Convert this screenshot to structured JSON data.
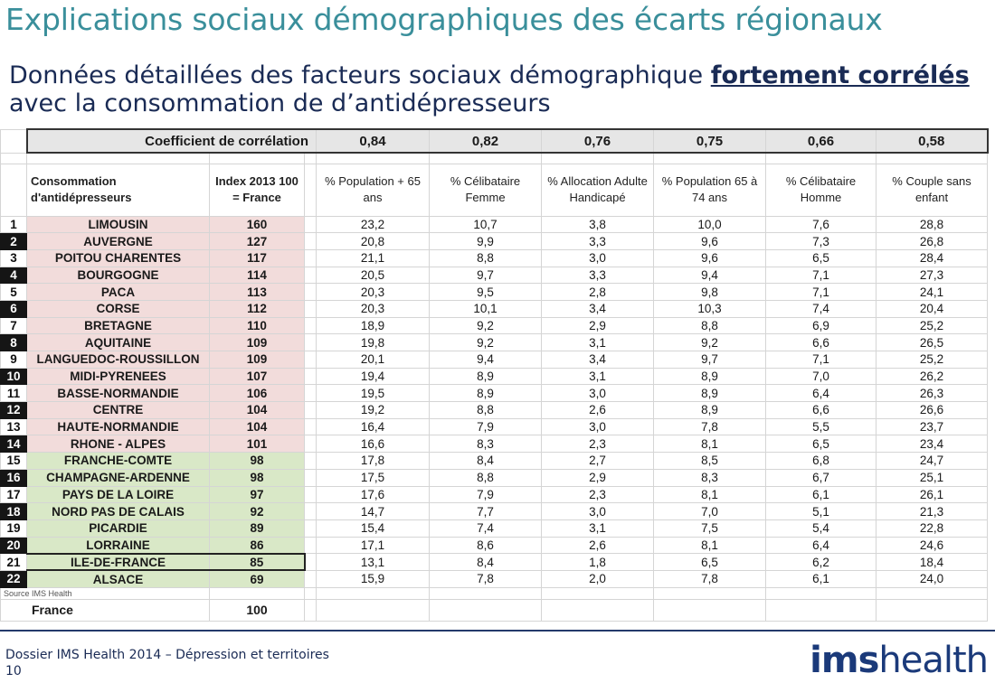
{
  "title": "Explications sociaux démographiques des écarts régionaux",
  "subtitle": {
    "line1_pre": "Données détaillées des facteurs sociaux démographique ",
    "line1_emph": "fortement corrélés",
    "line2": "avec la consommation de d’antidépresseurs"
  },
  "table": {
    "coef_label": "Coefficient de corrélation",
    "coefs": [
      "0,84",
      "0,82",
      "0,76",
      "0,75",
      "0,66",
      "0,58"
    ],
    "headers": {
      "consumption": "Consommation d'antidépresseurs",
      "index": "Index 2013 100 = France",
      "cols": [
        "% Population + 65 ans",
        "% Célibataire Femme",
        "% Allocation Adulte Handicapé",
        "% Population 65 à 74 ans",
        "% Célibataire Homme",
        "% Couple sans enfant"
      ]
    },
    "rows": [
      {
        "rank": "1",
        "region": "LIMOUSIN",
        "index": "160",
        "vals": [
          "23,2",
          "10,7",
          "3,8",
          "10,0",
          "7,6",
          "28,8"
        ]
      },
      {
        "rank": "2",
        "region": "AUVERGNE",
        "index": "127",
        "vals": [
          "20,8",
          "9,9",
          "3,3",
          "9,6",
          "7,3",
          "26,8"
        ]
      },
      {
        "rank": "3",
        "region": "POITOU CHARENTES",
        "index": "117",
        "vals": [
          "21,1",
          "8,8",
          "3,0",
          "9,6",
          "6,5",
          "28,4"
        ]
      },
      {
        "rank": "4",
        "region": "BOURGOGNE",
        "index": "114",
        "vals": [
          "20,5",
          "9,7",
          "3,3",
          "9,4",
          "7,1",
          "27,3"
        ]
      },
      {
        "rank": "5",
        "region": "PACA",
        "index": "113",
        "vals": [
          "20,3",
          "9,5",
          "2,8",
          "9,8",
          "7,1",
          "24,1"
        ]
      },
      {
        "rank": "6",
        "region": "CORSE",
        "index": "112",
        "vals": [
          "20,3",
          "10,1",
          "3,4",
          "10,3",
          "7,4",
          "20,4"
        ]
      },
      {
        "rank": "7",
        "region": "BRETAGNE",
        "index": "110",
        "vals": [
          "18,9",
          "9,2",
          "2,9",
          "8,8",
          "6,9",
          "25,2"
        ]
      },
      {
        "rank": "8",
        "region": "AQUITAINE",
        "index": "109",
        "vals": [
          "19,8",
          "9,2",
          "3,1",
          "9,2",
          "6,6",
          "26,5"
        ]
      },
      {
        "rank": "9",
        "region": "LANGUEDOC-ROUSSILLON",
        "index": "109",
        "vals": [
          "20,1",
          "9,4",
          "3,4",
          "9,7",
          "7,1",
          "25,2"
        ]
      },
      {
        "rank": "10",
        "region": "MIDI-PYRENEES",
        "index": "107",
        "vals": [
          "19,4",
          "8,9",
          "3,1",
          "8,9",
          "7,0",
          "26,2"
        ]
      },
      {
        "rank": "11",
        "region": "BASSE-NORMANDIE",
        "index": "106",
        "vals": [
          "19,5",
          "8,9",
          "3,0",
          "8,9",
          "6,4",
          "26,3"
        ]
      },
      {
        "rank": "12",
        "region": "CENTRE",
        "index": "104",
        "vals": [
          "19,2",
          "8,8",
          "2,6",
          "8,9",
          "6,6",
          "26,6"
        ]
      },
      {
        "rank": "13",
        "region": "HAUTE-NORMANDIE",
        "index": "104",
        "vals": [
          "16,4",
          "7,9",
          "3,0",
          "7,8",
          "5,5",
          "23,7"
        ]
      },
      {
        "rank": "14",
        "region": "RHONE - ALPES",
        "index": "101",
        "vals": [
          "16,6",
          "8,3",
          "2,3",
          "8,1",
          "6,5",
          "23,4"
        ]
      },
      {
        "rank": "15",
        "region": "FRANCHE-COMTE",
        "index": "98",
        "vals": [
          "17,8",
          "8,4",
          "2,7",
          "8,5",
          "6,8",
          "24,7"
        ]
      },
      {
        "rank": "16",
        "region": "CHAMPAGNE-ARDENNE",
        "index": "98",
        "vals": [
          "17,5",
          "8,8",
          "2,9",
          "8,3",
          "6,7",
          "25,1"
        ]
      },
      {
        "rank": "17",
        "region": "PAYS DE LA LOIRE",
        "index": "97",
        "vals": [
          "17,6",
          "7,9",
          "2,3",
          "8,1",
          "6,1",
          "26,1"
        ]
      },
      {
        "rank": "18",
        "region": "NORD PAS DE CALAIS",
        "index": "92",
        "vals": [
          "14,7",
          "7,7",
          "3,0",
          "7,0",
          "5,1",
          "21,3"
        ]
      },
      {
        "rank": "19",
        "region": "PICARDIE",
        "index": "89",
        "vals": [
          "15,4",
          "7,4",
          "3,1",
          "7,5",
          "5,4",
          "22,8"
        ]
      },
      {
        "rank": "20",
        "region": "LORRAINE",
        "index": "86",
        "vals": [
          "17,1",
          "8,6",
          "2,6",
          "8,1",
          "6,4",
          "24,6"
        ]
      },
      {
        "rank": "21",
        "region": "ILE-DE-FRANCE",
        "index": "85",
        "vals": [
          "13,1",
          "8,4",
          "1,8",
          "6,5",
          "6,2",
          "18,4"
        ]
      },
      {
        "rank": "22",
        "region": "ALSACE",
        "index": "69",
        "vals": [
          "15,9",
          "7,8",
          "2,0",
          "7,8",
          "6,1",
          "24,0"
        ]
      }
    ],
    "source": "Source IMS Health",
    "france_label": "France",
    "france_index": "100"
  },
  "footer": {
    "line1": "Dossier IMS Health 2014 – Dépression et territoires",
    "page": "10"
  },
  "logo": {
    "bold": "ims",
    "light": "health",
    "color": "#1b3a7a"
  },
  "colors": {
    "title": "#3a8f9b",
    "text": "#1a2b55",
    "pink": "#f2dcdb",
    "green": "#d9e8c7",
    "dark_rank": "#151515"
  }
}
